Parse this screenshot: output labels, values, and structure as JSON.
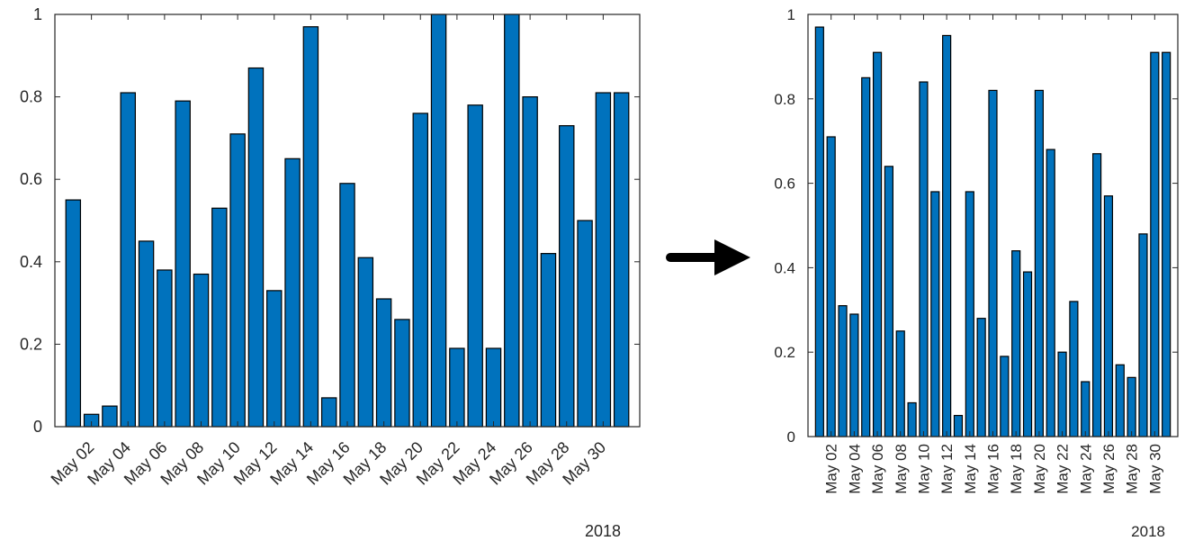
{
  "chart_data": [
    {
      "type": "bar",
      "xtick_labels": [
        "May 02",
        "May 04",
        "May 06",
        "May 08",
        "May 10",
        "May 12",
        "May 14",
        "May 16",
        "May 18",
        "May 20",
        "May 22",
        "May 24",
        "May 26",
        "May 28",
        "May 30"
      ],
      "x": [
        "2018-05-01",
        "2018-05-02",
        "2018-05-03",
        "2018-05-04",
        "2018-05-05",
        "2018-05-06",
        "2018-05-07",
        "2018-05-08",
        "2018-05-09",
        "2018-05-10",
        "2018-05-11",
        "2018-05-12",
        "2018-05-13",
        "2018-05-14",
        "2018-05-15",
        "2018-05-16",
        "2018-05-17",
        "2018-05-18",
        "2018-05-19",
        "2018-05-20",
        "2018-05-21",
        "2018-05-22",
        "2018-05-23",
        "2018-05-24",
        "2018-05-25",
        "2018-05-26",
        "2018-05-27",
        "2018-05-28",
        "2018-05-29",
        "2018-05-30",
        "2018-05-31"
      ],
      "values": [
        0.55,
        0.03,
        0.05,
        0.81,
        0.45,
        0.38,
        0.79,
        0.37,
        0.53,
        0.71,
        0.87,
        0.33,
        0.65,
        0.97,
        0.07,
        0.59,
        0.41,
        0.31,
        0.26,
        0.76,
        1.0,
        0.19,
        0.78,
        0.19,
        1.0,
        0.8,
        0.42,
        0.73,
        0.5,
        0.81,
        0.81
      ],
      "yticks": [
        "0",
        "0.2",
        "0.4",
        "0.6",
        "0.8",
        "1"
      ],
      "ylim": [
        0,
        1
      ],
      "xtick_rotation": 45,
      "year_label": "2018",
      "bar_color": "#0072BD",
      "xlabel": "",
      "ylabel": "",
      "title": ""
    },
    {
      "type": "bar",
      "xtick_labels": [
        "May 02",
        "May 04",
        "May 06",
        "May 08",
        "May 10",
        "May 12",
        "May 14",
        "May 16",
        "May 18",
        "May 20",
        "May 22",
        "May 24",
        "May 26",
        "May 28",
        "May 30"
      ],
      "x": [
        "2018-05-01",
        "2018-05-02",
        "2018-05-03",
        "2018-05-04",
        "2018-05-05",
        "2018-05-06",
        "2018-05-07",
        "2018-05-08",
        "2018-05-09",
        "2018-05-10",
        "2018-05-11",
        "2018-05-12",
        "2018-05-13",
        "2018-05-14",
        "2018-05-15",
        "2018-05-16",
        "2018-05-17",
        "2018-05-18",
        "2018-05-19",
        "2018-05-20",
        "2018-05-21",
        "2018-05-22",
        "2018-05-23",
        "2018-05-24",
        "2018-05-25",
        "2018-05-26",
        "2018-05-27",
        "2018-05-28",
        "2018-05-29",
        "2018-05-30",
        "2018-05-31"
      ],
      "values": [
        0.97,
        0.71,
        0.31,
        0.29,
        0.85,
        0.91,
        0.64,
        0.25,
        0.08,
        0.84,
        0.58,
        0.95,
        0.05,
        0.58,
        0.28,
        0.82,
        0.19,
        0.44,
        0.39,
        0.82,
        0.68,
        0.2,
        0.32,
        0.13,
        0.67,
        0.57,
        0.17,
        0.14,
        0.48,
        0.91,
        0.91
      ],
      "yticks": [
        "0",
        "0.2",
        "0.4",
        "0.6",
        "0.8",
        "1"
      ],
      "ylim": [
        0,
        1
      ],
      "xtick_rotation": 90,
      "year_label": "2018",
      "bar_color": "#0072BD",
      "xlabel": "",
      "ylabel": "",
      "title": ""
    }
  ],
  "arrow": {
    "icon": "right-arrow-icon",
    "color": "#000000"
  }
}
